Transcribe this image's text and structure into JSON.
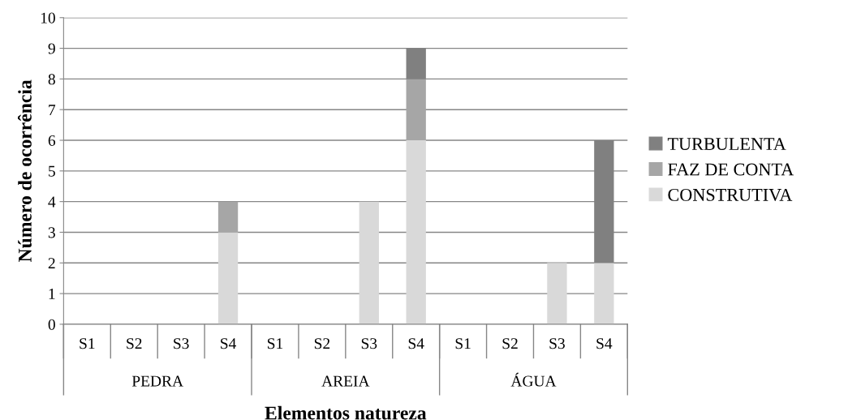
{
  "chart_data": {
    "type": "bar",
    "stacked": true,
    "xlabel": "Elementos natureza",
    "ylabel": "Número de ocorrência",
    "categories": [
      "S1",
      "S2",
      "S3",
      "S4",
      "S1",
      "S2",
      "S3",
      "S4",
      "S1",
      "S2",
      "S3",
      "S4"
    ],
    "annotations": [
      "PEDRA",
      "AREIA",
      "ÁGUA"
    ],
    "series": [
      {
        "name": "CONSTRUTIVA",
        "color": "#d9d9d9",
        "values": [
          0,
          0,
          0,
          3,
          0,
          0,
          4,
          6,
          0,
          0,
          2,
          2
        ]
      },
      {
        "name": "FAZ DE CONTA",
        "color": "#a6a6a6",
        "values": [
          0,
          0,
          0,
          1,
          0,
          0,
          0,
          2,
          0,
          0,
          0,
          0
        ]
      },
      {
        "name": "TURBULENTA",
        "color": "#808080",
        "values": [
          0,
          0,
          0,
          0,
          0,
          0,
          0,
          1,
          0,
          0,
          0,
          4
        ]
      }
    ],
    "ylim": [
      0,
      10
    ],
    "yticks": [
      0,
      1,
      2,
      3,
      4,
      5,
      6,
      7,
      8,
      9,
      10
    ],
    "grid": "y",
    "legend": "right"
  }
}
